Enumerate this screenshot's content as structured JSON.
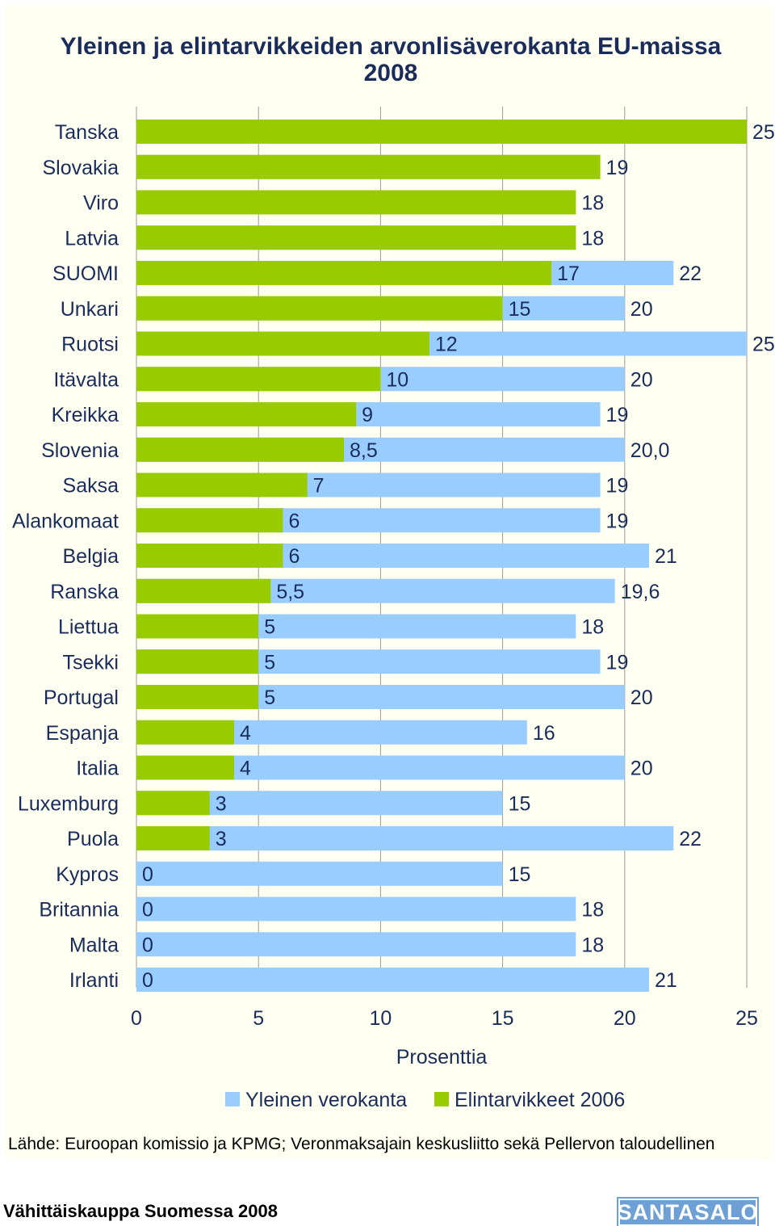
{
  "footer": {
    "left_text": "Vähittäiskauppa Suomessa 2008",
    "logo_text": "SANTASALO"
  },
  "chart_data": {
    "type": "bar",
    "orientation": "horizontal",
    "title": "Yleinen ja elintarvikkeiden arvonlisäverokanta EU-maissa",
    "title_line2": "2008",
    "xlabel": "Prosenttia",
    "xlim": [
      0,
      25
    ],
    "xticks": [
      "0",
      "5",
      "10",
      "15",
      "20",
      "25"
    ],
    "gridlines": true,
    "legend_position": "bottom",
    "source": "Lähde: Euroopan komissio ja KPMG; Veronmaksajain keskusliitto sekä Pellervon taloudellinen",
    "colors": {
      "general": "#99ccff",
      "food": "#99cc00"
    },
    "series": [
      {
        "name": "Yleinen verokanta",
        "key": "general"
      },
      {
        "name": "Elintarvikkeet 2006",
        "key": "food"
      }
    ],
    "categories": [
      {
        "name": "Tanska",
        "general": 25,
        "food": 25,
        "general_label": "",
        "food_label": "25"
      },
      {
        "name": "Slovakia",
        "general": 19,
        "food": 19,
        "general_label": "",
        "food_label": "19"
      },
      {
        "name": "Viro",
        "general": 18,
        "food": 18,
        "general_label": "",
        "food_label": "18"
      },
      {
        "name": "Latvia",
        "general": 18,
        "food": 18,
        "general_label": "",
        "food_label": "18"
      },
      {
        "name": "SUOMI",
        "general": 22,
        "food": 17,
        "general_label": "22",
        "food_label": "17"
      },
      {
        "name": "Unkari",
        "general": 20,
        "food": 15,
        "general_label": "20",
        "food_label": "15"
      },
      {
        "name": "Ruotsi",
        "general": 25,
        "food": 12,
        "general_label": "25",
        "food_label": "12"
      },
      {
        "name": "Itävalta",
        "general": 20,
        "food": 10,
        "general_label": "20",
        "food_label": "10"
      },
      {
        "name": "Kreikka",
        "general": 19,
        "food": 9,
        "general_label": "19",
        "food_label": "9"
      },
      {
        "name": "Slovenia",
        "general": 20,
        "food": 8.5,
        "general_label": "20,0",
        "food_label": "8,5"
      },
      {
        "name": "Saksa",
        "general": 19,
        "food": 7,
        "general_label": "19",
        "food_label": "7"
      },
      {
        "name": "Alankomaat",
        "general": 19,
        "food": 6,
        "general_label": "19",
        "food_label": "6"
      },
      {
        "name": "Belgia",
        "general": 21,
        "food": 6,
        "general_label": "21",
        "food_label": "6"
      },
      {
        "name": "Ranska",
        "general": 19.6,
        "food": 5.5,
        "general_label": "19,6",
        "food_label": "5,5"
      },
      {
        "name": "Liettua",
        "general": 18,
        "food": 5,
        "general_label": "18",
        "food_label": "5"
      },
      {
        "name": "Tsekki",
        "general": 19,
        "food": 5,
        "general_label": "19",
        "food_label": "5"
      },
      {
        "name": "Portugal",
        "general": 20,
        "food": 5,
        "general_label": "20",
        "food_label": "5"
      },
      {
        "name": "Espanja",
        "general": 16,
        "food": 4,
        "general_label": "16",
        "food_label": "4"
      },
      {
        "name": "Italia",
        "general": 20,
        "food": 4,
        "general_label": "20",
        "food_label": "4"
      },
      {
        "name": "Luxemburg",
        "general": 15,
        "food": 3,
        "general_label": "15",
        "food_label": "3"
      },
      {
        "name": "Puola",
        "general": 22,
        "food": 3,
        "general_label": "22",
        "food_label": "3"
      },
      {
        "name": "Kypros",
        "general": 15,
        "food": 0,
        "general_label": "15",
        "food_label": "0"
      },
      {
        "name": "Britannia",
        "general": 18,
        "food": 0,
        "general_label": "18",
        "food_label": "0"
      },
      {
        "name": "Malta",
        "general": 18,
        "food": 0,
        "general_label": "18",
        "food_label": "0"
      },
      {
        "name": "Irlanti",
        "general": 21,
        "food": 0,
        "general_label": "21",
        "food_label": "0"
      }
    ]
  }
}
